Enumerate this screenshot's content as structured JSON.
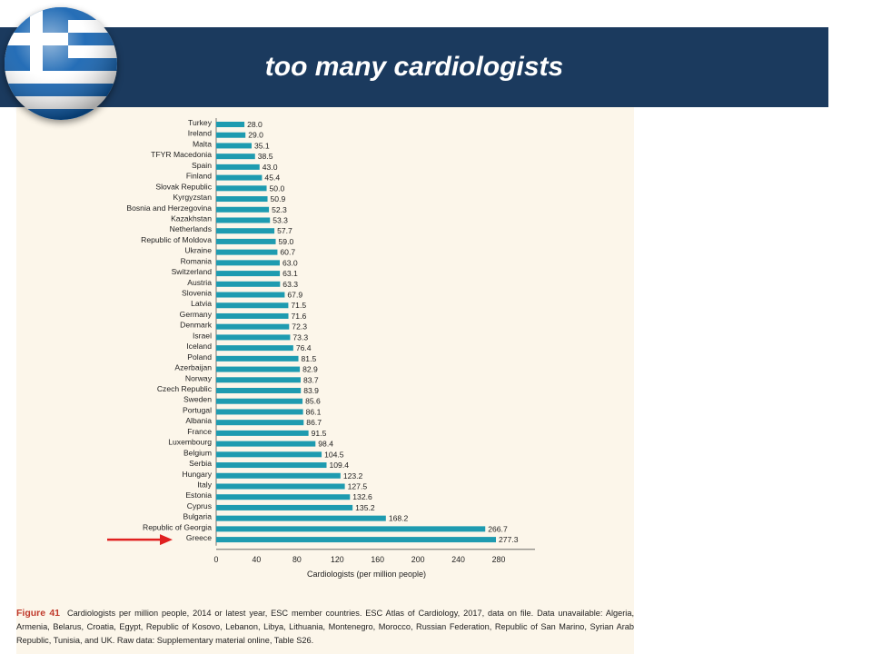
{
  "slide": {
    "title": "too many cardiologists",
    "accent_color": "#1b3a5e",
    "flag_icon": "greece-flag-icon"
  },
  "caption": {
    "label": "Figure 41",
    "text": "Cardiologists per million people, 2014 or latest year, ESC member countries. ESC Atlas of Cardiology, 2017, data on file. Data unavailable: Algeria, Armenia, Belarus, Croatia, Egypt, Republic of Kosovo, Lebanon, Libya, Lithuania, Montenegro, Morocco, Russian Federation, Republic of San Marino, Syrian Arab Republic, Tunisia, and UK. Raw data: Supplementary material online, Table S26."
  },
  "chart_data": {
    "type": "bar",
    "orientation": "horizontal",
    "categories": [
      "Turkey",
      "Ireland",
      "Malta",
      "TFYR Macedonia",
      "Spain",
      "Finland",
      "Slovak Republic",
      "Kyrgyzstan",
      "Bosnia and Herzegovina",
      "Kazakhstan",
      "Netherlands",
      "Republic of Moldova",
      "Ukraine",
      "Romania",
      "Switzerland",
      "Austria",
      "Slovenia",
      "Latvia",
      "Germany",
      "Denmark",
      "Israel",
      "Iceland",
      "Poland",
      "Azerbaijan",
      "Norway",
      "Czech Republic",
      "Sweden",
      "Portugal",
      "Albania",
      "France",
      "Luxembourg",
      "Belgium",
      "Serbia",
      "Hungary",
      "Italy",
      "Estonia",
      "Cyprus",
      "Bulgaria",
      "Republic of Georgia",
      "Greece"
    ],
    "values": [
      28.0,
      29.0,
      35.1,
      38.5,
      43.0,
      45.4,
      50.0,
      50.9,
      52.3,
      53.3,
      57.7,
      59.0,
      60.7,
      63.0,
      63.1,
      63.3,
      67.9,
      71.5,
      71.6,
      72.3,
      73.3,
      76.4,
      81.5,
      82.9,
      83.7,
      83.9,
      85.6,
      86.1,
      86.7,
      91.5,
      98.4,
      104.5,
      109.4,
      123.2,
      127.5,
      132.6,
      135.2,
      168.2,
      266.7,
      277.3
    ],
    "value_labels": [
      "28.0",
      "29.0",
      "35.1",
      "38.5",
      "43.0",
      "45.4",
      "50.0",
      "50.9",
      "52.3",
      "53.3",
      "57.7",
      "59.0",
      "60.7",
      "63.0",
      "63.1",
      "63.3",
      "67.9",
      "71.5",
      "71.6",
      "72.3",
      "73.3",
      "76.4",
      "81.5",
      "82.9",
      "83.7",
      "83.9",
      "85.6",
      "86.1",
      "86.7",
      "91.5",
      "98.4",
      "104.5",
      "109.4",
      "123.2",
      "127.5",
      "132.6",
      "135.2",
      "168.2",
      "266.7",
      "277.3"
    ],
    "xlabel": "Cardiologists (per million people)",
    "xlim": [
      0,
      280
    ],
    "xticks": [
      "0",
      "40",
      "80",
      "120",
      "160",
      "200",
      "240",
      "280"
    ],
    "bar_color": "#1e9bb0",
    "highlight": "Greece",
    "arrow_color": "#e02020",
    "grid": false
  }
}
